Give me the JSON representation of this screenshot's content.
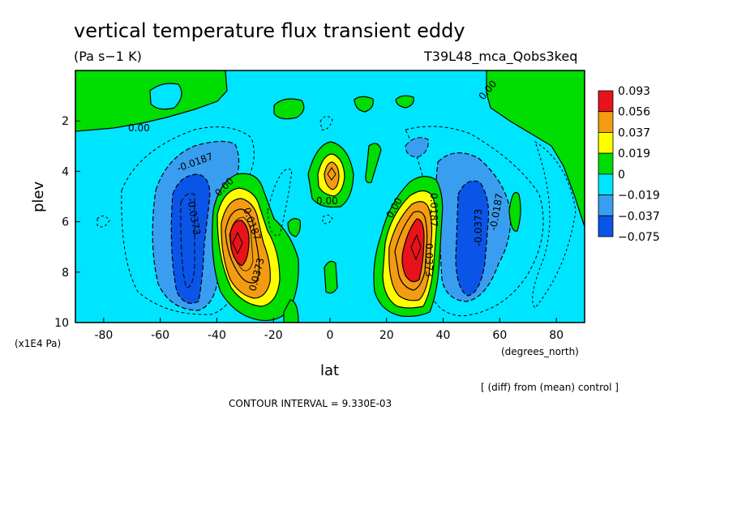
{
  "chart_data": {
    "type": "contour",
    "title": "vertical temperature flux transient eddy",
    "units": "(Pa s−1 K)",
    "run_label": "T39L48_mca_Qobs3keq",
    "xlabel": "lat",
    "x_units": "(degrees_north)",
    "ylabel": "plev",
    "y_units": "(x1E4 Pa)",
    "note": "[ (diff) from (mean) control ]",
    "contour_interval_text": "CONTOUR INTERVAL = 9.330E-03",
    "xlim": [
      -90,
      90
    ],
    "ylim": [
      10,
      0
    ],
    "x_ticks": [
      "-80",
      "-60",
      "-40",
      "-20",
      "0",
      "20",
      "40",
      "60",
      "80"
    ],
    "y_ticks": [
      "2",
      "4",
      "6",
      "8",
      "10"
    ],
    "colorbar": {
      "labels": [
        "0.093",
        "0.056",
        "0.037",
        "0.019",
        "0",
        "−0.019",
        "−0.037",
        "−0.075"
      ],
      "colors": [
        "#e8131a",
        "#f39c12",
        "#ffff00",
        "#00dd00",
        "#00e5ff",
        "#3a9ef0",
        "#0a55e8"
      ]
    },
    "contour_labels": [
      "0.00",
      "0.00",
      "-0.0187",
      "-0.0373",
      "0.00",
      "0.0187",
      "0.0373",
      "0.00",
      "0.00",
      "0.0373",
      "0.0187",
      "-0.0373",
      "-0.0187",
      "0.00"
    ],
    "features": [
      {
        "name": "SH positive maximum",
        "lat": -32,
        "plev": 7.0,
        "value": 0.093
      },
      {
        "name": "NH positive maximum",
        "lat": 30,
        "plev": 6.8,
        "value": 0.093
      },
      {
        "name": "SH negative minimum",
        "lat": -50,
        "plev": 7.2,
        "value": -0.0373
      },
      {
        "name": "NH negative minimum",
        "lat": 50,
        "plev": 6.6,
        "value": -0.0373
      },
      {
        "name": "equatorial positive cell",
        "lat": 1,
        "plev": 4.1,
        "value": 0.037
      }
    ]
  }
}
